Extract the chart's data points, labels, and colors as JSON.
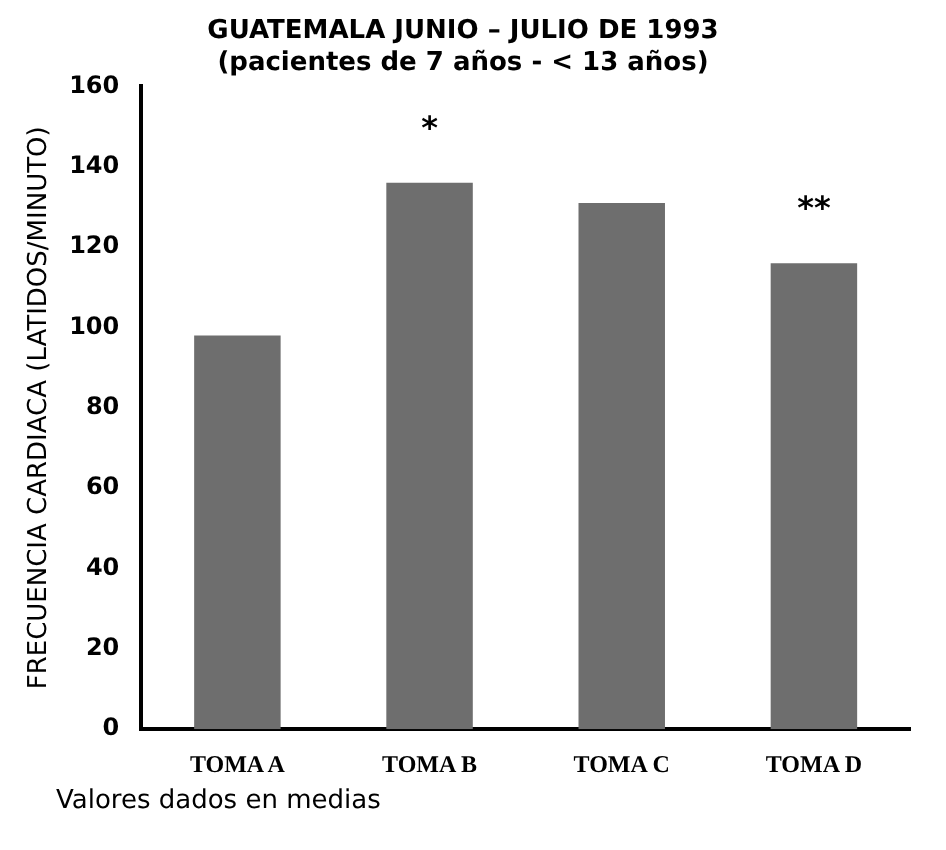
{
  "chart_data": {
    "type": "bar",
    "title": "GUATEMALA JUNIO – JULIO DE 1993",
    "subtitle": "(pacientes de 7 años - < 13 años)",
    "ylabel": "FRECUENCIA CARDIACA (LATIDOS/MINUTO)",
    "categories": [
      "TOMA A",
      "TOMA B",
      "TOMA C",
      "TOMA D"
    ],
    "values": [
      98,
      136,
      131,
      116
    ],
    "color": "#6e6e6e",
    "ylim": [
      0,
      160
    ],
    "yticks": [
      0,
      20,
      40,
      60,
      80,
      100,
      120,
      140,
      160
    ],
    "grid": false,
    "legend": false,
    "annotations": [
      {
        "text": "*",
        "x": "TOMA B",
        "y": 136
      },
      {
        "text": "**",
        "x": "TOMA D",
        "y": 116
      },
      "Valores dados en medias"
    ]
  }
}
